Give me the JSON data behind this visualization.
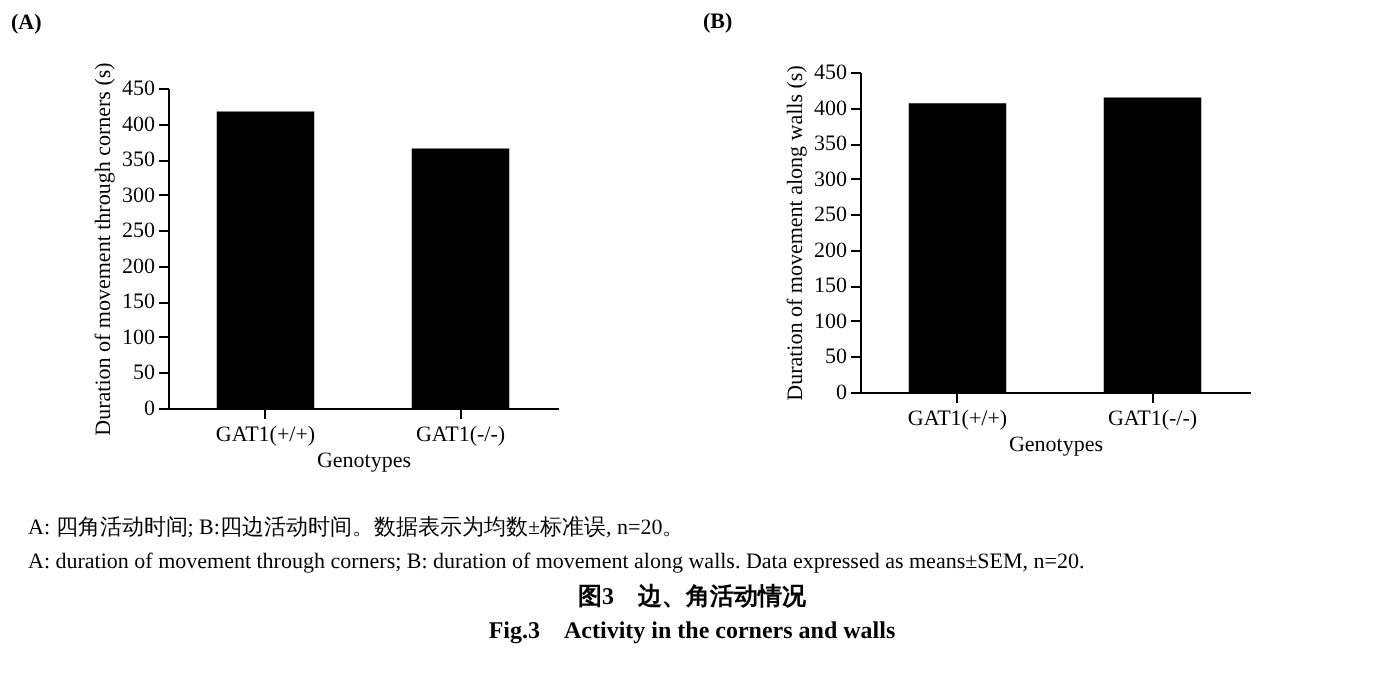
{
  "chart_data": [
    {
      "type": "bar",
      "title": "(A)",
      "categories": [
        "GAT1(+/+)",
        "GAT1(-/-)"
      ],
      "values": [
        417,
        365
      ],
      "color": "#000000",
      "xlabel": "Genotypes",
      "ylabel": "Duration of movement through corners (s)",
      "ylim": [
        0,
        450
      ],
      "yticks": [
        0,
        50,
        100,
        150,
        200,
        250,
        300,
        350,
        400,
        450
      ],
      "grid": false
    },
    {
      "type": "bar",
      "title": "(B)",
      "categories": [
        "GAT1(+/+)",
        "GAT1(-/-)"
      ],
      "values": [
        406,
        414
      ],
      "color": "#000000",
      "xlabel": "Genotypes",
      "ylabel": "Duration of movement along walls (s)",
      "ylim": [
        0,
        450
      ],
      "yticks": [
        0,
        50,
        100,
        150,
        200,
        250,
        300,
        350,
        400,
        450
      ],
      "grid": false,
      "annotations": [
        "A: 四角活动时间; B:四边活动时间。数据表示为均数±标准误, n=20。",
        "A: duration of movement through corners; B: duration of movement along walls. Data expressed as means±SEM, n=20.",
        "图3　边、角活动情况",
        "Fig.3　Activity in the corners and walls"
      ]
    }
  ]
}
